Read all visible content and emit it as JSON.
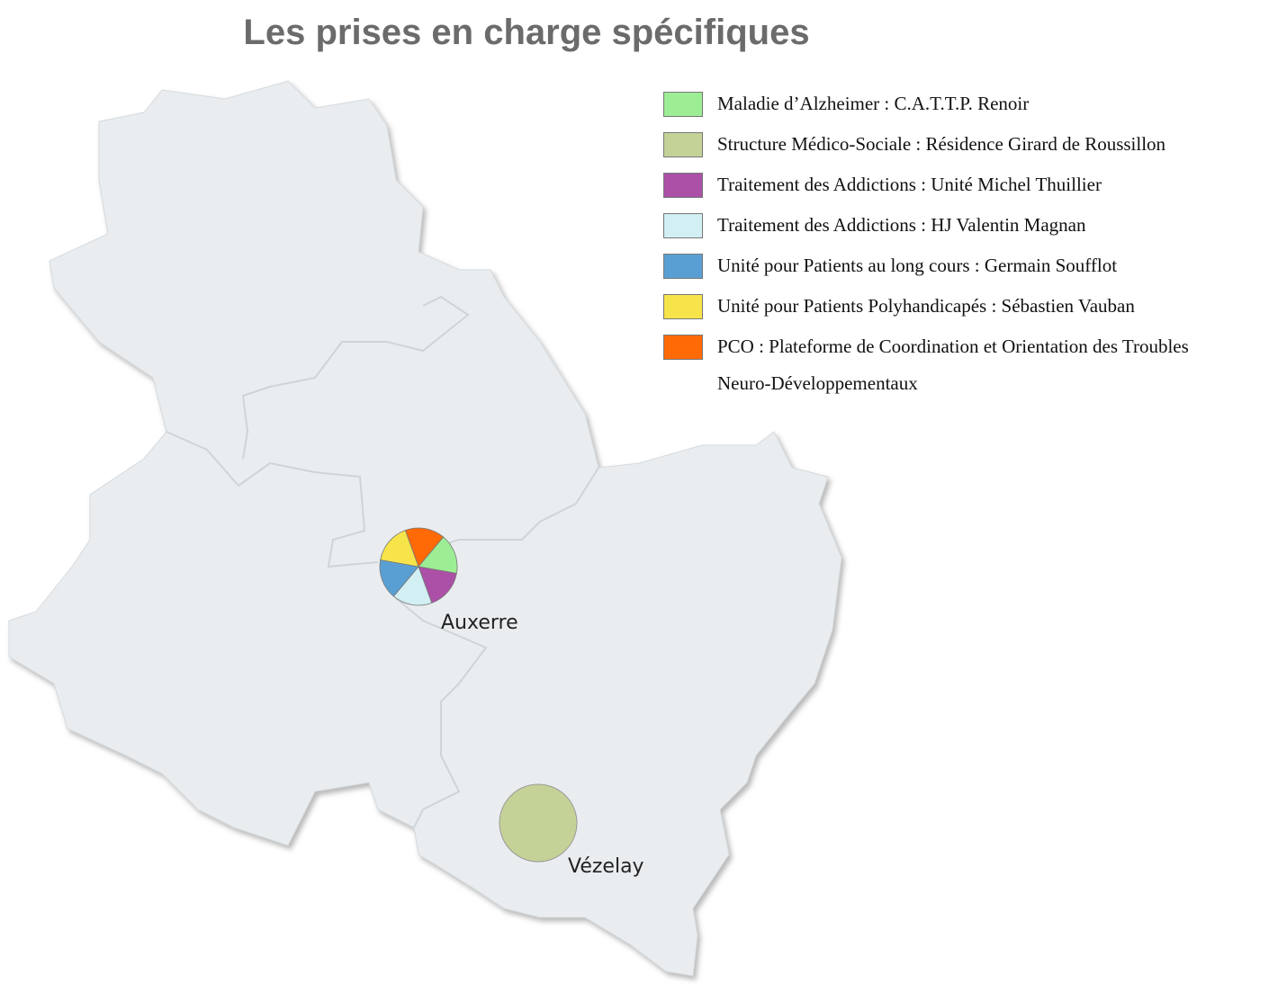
{
  "title": "Les prises en charge spécifiques",
  "legend": [
    {
      "label": "Maladie d’Alzheimer : C.A.T.T.P. Renoir",
      "color": "#9ded94"
    },
    {
      "label": "Structure Médico-Sociale : Résidence Girard de Roussillon",
      "color": "#c4d297"
    },
    {
      "label": "Traitement des Addictions : Unité Michel Thuillier",
      "color": "#ab50a6"
    },
    {
      "label": "Traitement des Addictions : HJ Valentin Magnan",
      "color": "#d2eff3"
    },
    {
      "label": "Unité pour Patients au long cours : Germain Soufflot",
      "color": "#5a9fd3"
    },
    {
      "label": "Unité pour Patients Polyhandicapés : Sébastien Vauban",
      "color": "#f7e44a"
    },
    {
      "label": "PCO : Plateforme de Coordination et Orientation des Troubles Neuro-Développementaux",
      "color": "#ff6a07"
    }
  ],
  "cities": [
    "Auxerre",
    "Vézelay"
  ]
}
